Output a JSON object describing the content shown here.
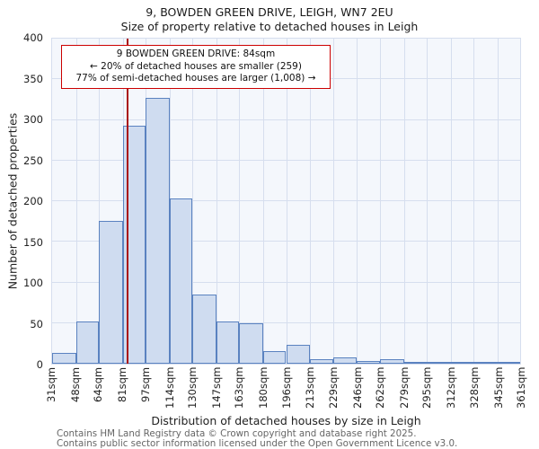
{
  "chart_data": {
    "type": "bar",
    "title": "9, BOWDEN GREEN DRIVE, LEIGH, WN7 2EU",
    "subtitle": "Size of property relative to detached houses in Leigh",
    "xlabel": "Distribution of detached houses by size in Leigh",
    "ylabel": "Number of detached properties",
    "ylim": [
      0,
      400
    ],
    "yticks": [
      0,
      50,
      100,
      150,
      200,
      250,
      300,
      350,
      400
    ],
    "grid": true,
    "legend": false,
    "bin_edges_sqm": [
      31,
      48,
      64,
      81,
      97,
      114,
      130,
      147,
      163,
      180,
      196,
      213,
      229,
      246,
      262,
      279,
      295,
      312,
      328,
      345,
      361
    ],
    "x_tick_labels": [
      "31sqm",
      "48sqm",
      "64sqm",
      "81sqm",
      "97sqm",
      "114sqm",
      "130sqm",
      "147sqm",
      "163sqm",
      "180sqm",
      "196sqm",
      "213sqm",
      "229sqm",
      "246sqm",
      "262sqm",
      "279sqm",
      "295sqm",
      "312sqm",
      "328sqm",
      "345sqm",
      "361sqm"
    ],
    "values": [
      13,
      52,
      176,
      293,
      327,
      203,
      85,
      52,
      50,
      15,
      23,
      6,
      8,
      3,
      5,
      2,
      1,
      1,
      1,
      1
    ],
    "marker": {
      "value_sqm": 84,
      "color": "#aa1111"
    },
    "annotation": {
      "line1": "9 BOWDEN GREEN DRIVE: 84sqm",
      "line2": "← 20% of detached houses are smaller (259)",
      "line3": "77% of semi-detached houses are larger (1,008) →",
      "border_color": "#cc0000"
    },
    "colors": {
      "bar_fill": "#cfdcf0",
      "bar_border": "#5a82c0",
      "grid": "#d6deee",
      "plot_bg": "#f4f7fc"
    }
  },
  "footer": {
    "line1": "Contains HM Land Registry data © Crown copyright and database right 2025.",
    "line2": "Contains public sector information licensed under the Open Government Licence v3.0."
  }
}
